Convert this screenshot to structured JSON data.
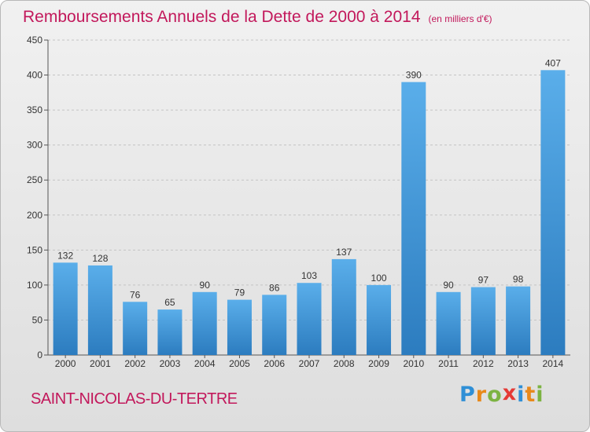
{
  "chart_data": {
    "type": "bar",
    "title": "Remboursements Annuels de la Dette de 2000 à 2014",
    "subtitle": "(en milliers d'€)",
    "categories": [
      "2000",
      "2001",
      "2002",
      "2003",
      "2004",
      "2005",
      "2006",
      "2007",
      "2008",
      "2009",
      "2010",
      "2011",
      "2012",
      "2013",
      "2014"
    ],
    "values": [
      132,
      128,
      76,
      65,
      90,
      79,
      86,
      103,
      137,
      100,
      390,
      90,
      97,
      98,
      407
    ],
    "ylim": [
      0,
      450
    ],
    "yticks": [
      0,
      50,
      100,
      150,
      200,
      250,
      300,
      350,
      400,
      450
    ],
    "grid": true,
    "colors": {
      "bar_light": "#5aaeea",
      "bar_dark": "#2c7cbf",
      "text_accent": "#c2185b"
    }
  },
  "footer": {
    "commune": "SAINT-NICOLAS-DU-TERTRE",
    "logo_letters": [
      "P",
      "r",
      "o",
      "x",
      "i",
      "t",
      "i"
    ],
    "logo_colors": [
      "#2f8fd6",
      "#e8891a",
      "#7cb342",
      "#e53935",
      "#2f8fd6",
      "#e8891a",
      "#7cb342"
    ]
  }
}
